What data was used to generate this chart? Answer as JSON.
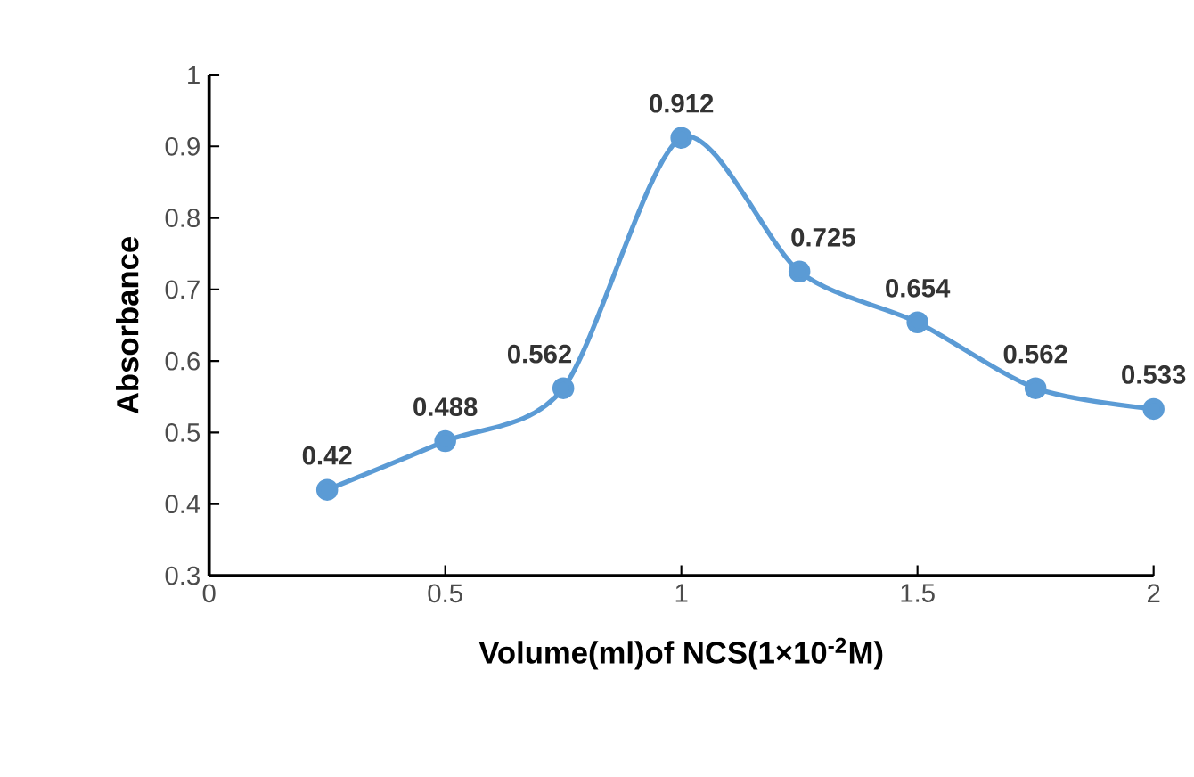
{
  "chart_data": {
    "type": "line",
    "xlabel": "Volume(ml)of NCS(1×10$^{-2}$M)",
    "ylabel": "Absorbance",
    "x": [
      0.25,
      0.5,
      0.75,
      1,
      1.25,
      1.5,
      1.75,
      2
    ],
    "series": [
      {
        "color": "#5b9bd5",
        "values": [
          0.42,
          0.488,
          0.562,
          0.912,
          0.725,
          0.654,
          0.562,
          0.533
        ]
      }
    ],
    "xlim": [
      0,
      2
    ],
    "ylim": [
      0.3,
      1
    ],
    "xticks": [
      0,
      0.5,
      1,
      1.5,
      2
    ],
    "yticks": [
      0.3,
      0.4,
      0.5,
      0.6,
      0.7,
      0.8,
      0.9,
      1
    ],
    "grid": false,
    "marker": "circle",
    "line_style": "solid",
    "data_labels": true
  }
}
